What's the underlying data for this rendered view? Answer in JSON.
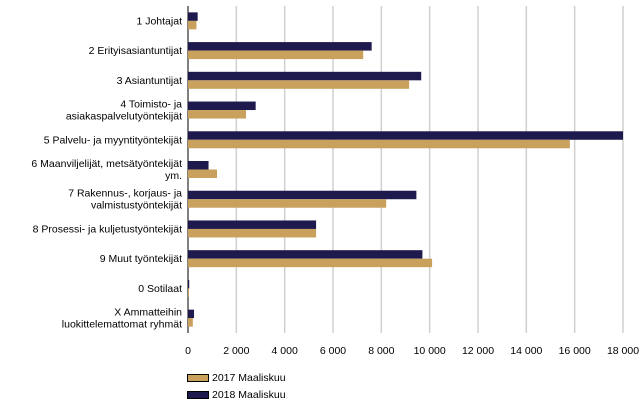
{
  "chart_data": {
    "type": "bar",
    "orientation": "horizontal",
    "categories": [
      [
        "1 Johtajat"
      ],
      [
        "2 Erityisasiantuntijat"
      ],
      [
        "3 Asiantuntijat"
      ],
      [
        "4 Toimisto- ja",
        "asiakaspalvelutyöntekijät"
      ],
      [
        "5 Palvelu- ja myyntityöntekijät"
      ],
      [
        "6 Maanviljelijät, metsätyöntekijät",
        "ym."
      ],
      [
        "7 Rakennus-, korjaus- ja",
        "valmistustyöntekijät"
      ],
      [
        "8 Prosessi- ja kuljetustyöntekijät"
      ],
      [
        "9 Muut työntekijät"
      ],
      [
        "0 Sotilaat"
      ],
      [
        "X Ammatteihin",
        "luokittelemattomat ryhmät"
      ]
    ],
    "series": [
      {
        "name": "2018 Maaliskuu",
        "color": "#1f1a4e",
        "values": [
          400,
          7600,
          9650,
          2800,
          18000,
          850,
          9450,
          5300,
          9700,
          50,
          250
        ]
      },
      {
        "name": "2017 Maaliskuu",
        "color": "#c9a15c",
        "values": [
          350,
          7250,
          9150,
          2400,
          15800,
          1200,
          8200,
          5300,
          10100,
          30,
          200
        ]
      }
    ],
    "xlim": [
      0,
      18000
    ],
    "xticks": [
      0,
      2000,
      4000,
      6000,
      8000,
      10000,
      12000,
      14000,
      16000,
      18000
    ],
    "xtick_labels": [
      "0",
      "2 000",
      "4 000",
      "6 000",
      "8 000",
      "10 000",
      "12 000",
      "14 000",
      "16 000",
      "18 000"
    ],
    "grid": "vertical",
    "legend_position": "bottom-left",
    "legend": [
      "2017 Maaliskuu",
      "2018 Maaliskuu"
    ]
  }
}
